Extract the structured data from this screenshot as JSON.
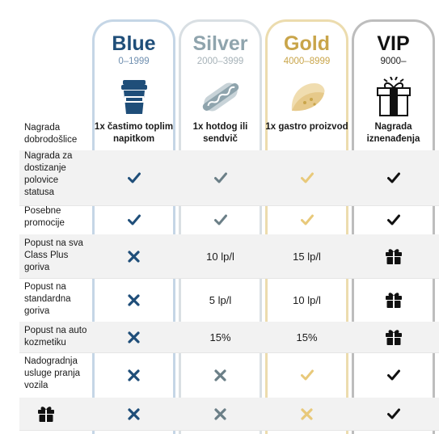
{
  "tiers": [
    {
      "name": "Blue",
      "range": "0–1999",
      "welcome": "1x častimo toplim napitkom",
      "icon": "coffee-cup-icon",
      "color": "#1f4e79"
    },
    {
      "name": "Silver",
      "range": "2000–3999",
      "welcome": "1x hotdog ili sendvič",
      "icon": "hotdog-icon",
      "color": "#8fa4ad"
    },
    {
      "name": "Gold",
      "range": "4000–8999",
      "welcome": "1x gastro proizvod",
      "icon": "taco-icon",
      "color": "#c9a54a"
    },
    {
      "name": "VIP",
      "range": "9000–",
      "welcome": "Nagrada iznenađenja",
      "icon": "gift-box-icon",
      "color": "#111111"
    }
  ],
  "welcome_label": "Nagrada dobrodošlice",
  "rows": [
    {
      "label": "Nagrada za dostizanje polovice statusa",
      "cells": [
        "check",
        "check",
        "check",
        "check"
      ]
    },
    {
      "label": "Posebne promocije",
      "cells": [
        "check",
        "check",
        "check",
        "check"
      ]
    },
    {
      "label": "Popust na sva Class Plus goriva",
      "cells": [
        "cross",
        "10 lp/l",
        "15 lp/l",
        "gift"
      ]
    },
    {
      "label": "Popust na standardna goriva",
      "cells": [
        "cross",
        "5 lp/l",
        "10 lp/l",
        "gift"
      ]
    },
    {
      "label": "Popust na auto kozmetiku",
      "cells": [
        "cross",
        "15%",
        "15%",
        "gift"
      ]
    },
    {
      "label": "Nadogradnja usluge pranja vozila",
      "cells": [
        "cross",
        "cross",
        "check",
        "check"
      ]
    },
    {
      "label": "",
      "label_icon": "gift-icon",
      "cells": [
        "cross",
        "cross",
        "cross",
        "check"
      ]
    }
  ]
}
